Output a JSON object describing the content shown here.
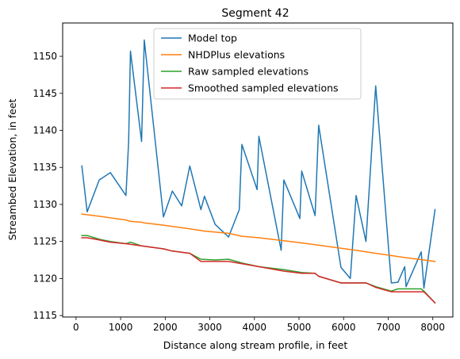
{
  "chart_data": {
    "type": "line",
    "title": "Segment 42",
    "xlabel": "Distance along stream profile, in feet",
    "ylabel": "Streambed Elevation, in feet",
    "xlim": [
      -300,
      8450
    ],
    "ylim": [
      1114.8,
      1154.5
    ],
    "xticks": [
      0,
      1000,
      2000,
      3000,
      4000,
      5000,
      6000,
      7000,
      8000
    ],
    "yticks": [
      1115,
      1120,
      1125,
      1130,
      1135,
      1140,
      1145,
      1150
    ],
    "grid": false,
    "legend_position": "top-center",
    "series": [
      {
        "name": "Model top",
        "color": "#1f77b4",
        "points": [
          [
            130,
            1135.2
          ],
          [
            250,
            1129
          ],
          [
            520,
            1133.3
          ],
          [
            770,
            1134.3
          ],
          [
            1120,
            1131.2
          ],
          [
            1180,
            1138.5
          ],
          [
            1220,
            1150.7
          ],
          [
            1470,
            1138.5
          ],
          [
            1530,
            1152.2
          ],
          [
            1960,
            1128.3
          ],
          [
            2160,
            1131.8
          ],
          [
            2370,
            1129.8
          ],
          [
            2550,
            1135.2
          ],
          [
            2800,
            1129.3
          ],
          [
            2880,
            1131.1
          ],
          [
            3120,
            1127.3
          ],
          [
            3420,
            1125.6
          ],
          [
            3660,
            1129.3
          ],
          [
            3720,
            1138.1
          ],
          [
            4060,
            1132
          ],
          [
            4100,
            1139.2
          ],
          [
            4600,
            1123.8
          ],
          [
            4660,
            1133.3
          ],
          [
            5020,
            1128.1
          ],
          [
            5060,
            1134.5
          ],
          [
            5360,
            1128.5
          ],
          [
            5440,
            1140.7
          ],
          [
            5940,
            1121.5
          ],
          [
            6150,
            1120
          ],
          [
            6280,
            1131.2
          ],
          [
            6500,
            1125
          ],
          [
            6720,
            1146
          ],
          [
            7070,
            1119.4
          ],
          [
            7220,
            1119.5
          ],
          [
            7370,
            1121.6
          ],
          [
            7400,
            1118.9
          ],
          [
            7740,
            1123.6
          ],
          [
            7800,
            1118.7
          ],
          [
            8050,
            1129.3
          ]
        ]
      },
      {
        "name": "NHDPlus elevations",
        "color": "#ff7f0e",
        "points": [
          [
            130,
            1128.7
          ],
          [
            520,
            1128.4
          ],
          [
            1120,
            1127.9
          ],
          [
            1220,
            1127.7
          ],
          [
            1470,
            1127.6
          ],
          [
            1530,
            1127.5
          ],
          [
            1960,
            1127.2
          ],
          [
            2550,
            1126.7
          ],
          [
            2880,
            1126.4
          ],
          [
            3420,
            1126.1
          ],
          [
            3720,
            1125.7
          ],
          [
            4100,
            1125.5
          ],
          [
            4660,
            1125.1
          ],
          [
            5060,
            1124.8
          ],
          [
            5440,
            1124.5
          ],
          [
            6280,
            1123.8
          ],
          [
            6720,
            1123.4
          ],
          [
            7400,
            1122.8
          ],
          [
            7800,
            1122.5
          ],
          [
            8050,
            1122.3
          ]
        ]
      },
      {
        "name": "Raw sampled elevations",
        "color": "#2ca02c",
        "points": [
          [
            130,
            1125.8
          ],
          [
            250,
            1125.8
          ],
          [
            520,
            1125.3
          ],
          [
            770,
            1125
          ],
          [
            1120,
            1124.7
          ],
          [
            1220,
            1124.9
          ],
          [
            1470,
            1124.4
          ],
          [
            1960,
            1124
          ],
          [
            2160,
            1123.7
          ],
          [
            2550,
            1123.4
          ],
          [
            2800,
            1122.6
          ],
          [
            3120,
            1122.5
          ],
          [
            3420,
            1122.6
          ],
          [
            3720,
            1122.1
          ],
          [
            4100,
            1121.6
          ],
          [
            4660,
            1121.2
          ],
          [
            5060,
            1120.8
          ],
          [
            5360,
            1120.7
          ],
          [
            5440,
            1120.3
          ],
          [
            5940,
            1119.4
          ],
          [
            6500,
            1119.4
          ],
          [
            6720,
            1118.9
          ],
          [
            7070,
            1118.3
          ],
          [
            7220,
            1118.6
          ],
          [
            7740,
            1118.6
          ],
          [
            7800,
            1118.3
          ],
          [
            8050,
            1116.7
          ]
        ]
      },
      {
        "name": "Smoothed sampled elevations",
        "color": "#d62728",
        "points": [
          [
            130,
            1125.5
          ],
          [
            250,
            1125.5
          ],
          [
            520,
            1125.2
          ],
          [
            770,
            1124.9
          ],
          [
            1120,
            1124.7
          ],
          [
            1470,
            1124.4
          ],
          [
            1960,
            1124
          ],
          [
            2160,
            1123.7
          ],
          [
            2550,
            1123.4
          ],
          [
            2800,
            1122.3
          ],
          [
            3120,
            1122.3
          ],
          [
            3420,
            1122.3
          ],
          [
            3720,
            1122
          ],
          [
            4100,
            1121.6
          ],
          [
            4660,
            1121
          ],
          [
            5060,
            1120.7
          ],
          [
            5360,
            1120.7
          ],
          [
            5440,
            1120.3
          ],
          [
            5940,
            1119.4
          ],
          [
            6500,
            1119.4
          ],
          [
            6720,
            1118.8
          ],
          [
            7070,
            1118.2
          ],
          [
            7800,
            1118.2
          ],
          [
            8050,
            1116.7
          ]
        ]
      }
    ]
  }
}
